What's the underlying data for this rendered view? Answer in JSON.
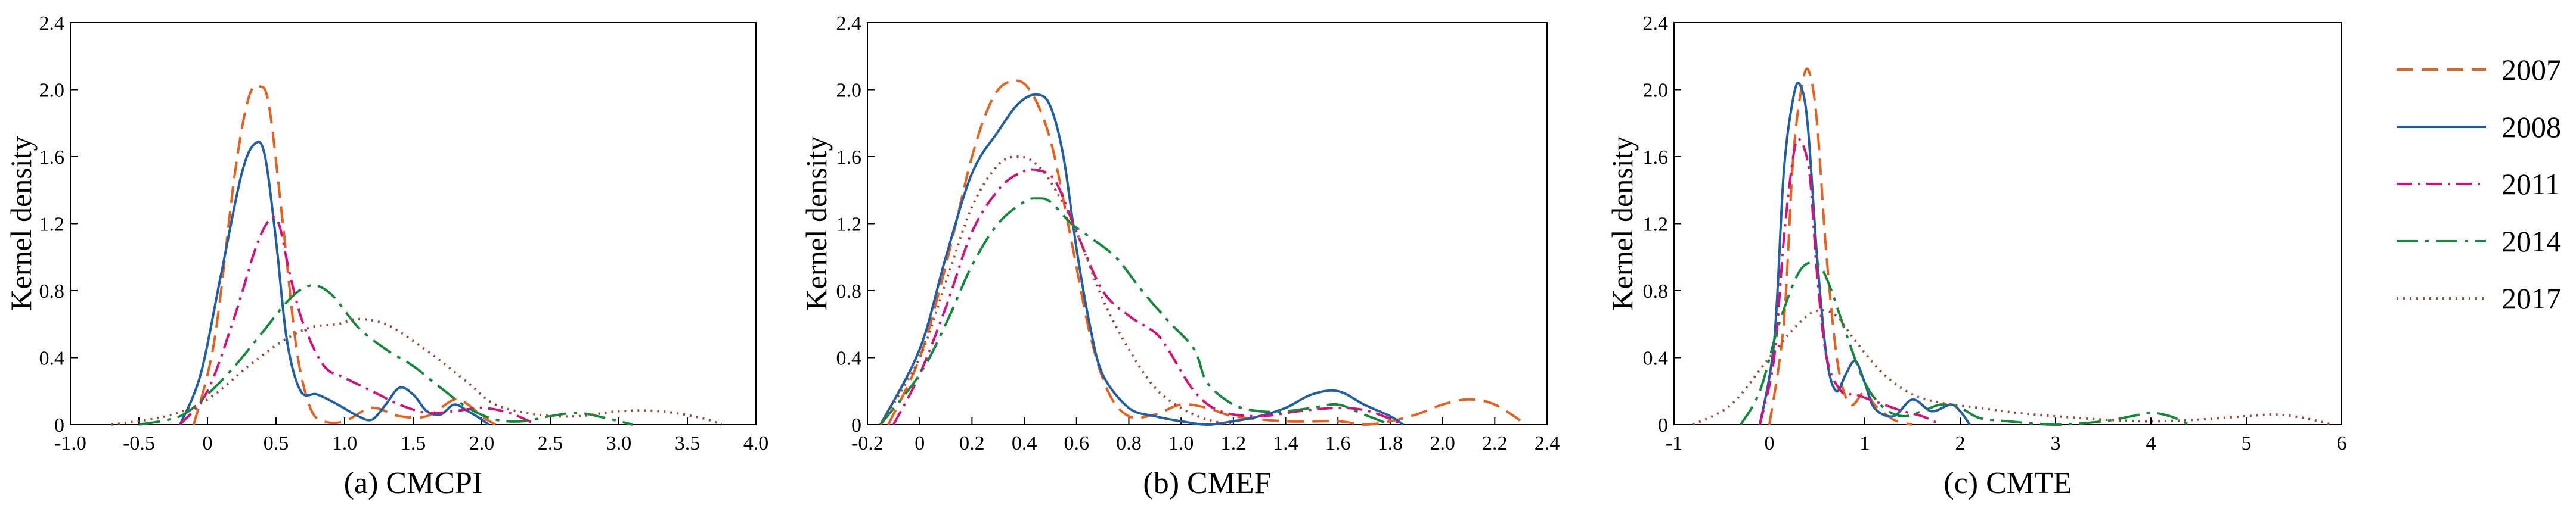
{
  "legend": {
    "entries": [
      {
        "label": "2007",
        "color": "#e8601c",
        "dash": "dashed"
      },
      {
        "label": "2008",
        "color": "#1f5fa8",
        "dash": "solid"
      },
      {
        "label": "2011",
        "color": "#d6107a",
        "dash": "dashdot"
      },
      {
        "label": "2014",
        "color": "#138a3a",
        "dash": "longdashdot"
      },
      {
        "label": "2017",
        "color": "#9c4a2e",
        "dash": "dotted"
      }
    ]
  },
  "chart_data": [
    {
      "type": "line",
      "caption": "(a) CMCPI",
      "ylabel": "Kernel density",
      "xlim": [
        -1.0,
        4.0
      ],
      "ylim": [
        0,
        2.4
      ],
      "xticks": [
        -1.0,
        -0.5,
        0,
        0.5,
        1.0,
        1.5,
        2.0,
        2.5,
        3.0,
        3.5,
        4.0
      ],
      "xtick_labels": [
        "-1.0",
        "-0.5",
        "0",
        "0.5",
        "1.0",
        "1.5",
        "2.0",
        "2.5",
        "3.0",
        "3.5",
        "4.0"
      ],
      "yticks": [
        0,
        0.4,
        0.8,
        1.2,
        1.6,
        2.0,
        2.4
      ],
      "ytick_labels": [
        "0",
        "0.4",
        "0.8",
        "1.2",
        "1.6",
        "2.0",
        "2.4"
      ],
      "series": [
        {
          "name": "2007",
          "x": [
            -0.1,
            0.05,
            0.2,
            0.3,
            0.38,
            0.45,
            0.55,
            0.65,
            0.75,
            0.85,
            1.0,
            1.2,
            1.4,
            1.6,
            1.8,
            1.9,
            2.0,
            2.1
          ],
          "y": [
            0,
            0.5,
            1.5,
            1.95,
            2.02,
            1.9,
            1.2,
            0.45,
            0.1,
            0.02,
            0.02,
            0.1,
            0.05,
            0.05,
            0.15,
            0.12,
            0.05,
            0
          ]
        },
        {
          "name": "2008",
          "x": [
            -0.2,
            -0.05,
            0.1,
            0.25,
            0.35,
            0.42,
            0.5,
            0.58,
            0.68,
            0.8,
            0.95,
            1.1,
            1.2,
            1.3,
            1.4,
            1.5,
            1.6,
            1.7,
            1.8,
            1.9,
            2.0,
            2.05
          ],
          "y": [
            0,
            0.3,
            0.9,
            1.5,
            1.68,
            1.6,
            1.1,
            0.5,
            0.2,
            0.18,
            0.12,
            0.05,
            0.03,
            0.12,
            0.22,
            0.18,
            0.08,
            0.06,
            0.12,
            0.08,
            0.03,
            0
          ]
        },
        {
          "name": "2011",
          "x": [
            -0.2,
            0.0,
            0.2,
            0.35,
            0.45,
            0.52,
            0.6,
            0.7,
            0.85,
            1.0,
            1.2,
            1.4,
            1.6,
            1.8,
            2.0,
            2.2,
            2.4
          ],
          "y": [
            0,
            0.2,
            0.65,
            1.05,
            1.22,
            1.2,
            0.9,
            0.6,
            0.35,
            0.28,
            0.2,
            0.12,
            0.07,
            0.08,
            0.1,
            0.07,
            0
          ]
        },
        {
          "name": "2014",
          "x": [
            -0.5,
            -0.2,
            0.0,
            0.2,
            0.4,
            0.6,
            0.75,
            0.9,
            1.1,
            1.3,
            1.5,
            1.7,
            1.9,
            2.1,
            2.3,
            2.5,
            2.7,
            2.9,
            3.1
          ],
          "y": [
            0,
            0.05,
            0.18,
            0.35,
            0.55,
            0.75,
            0.83,
            0.78,
            0.58,
            0.45,
            0.35,
            0.22,
            0.1,
            0.03,
            0.02,
            0.05,
            0.07,
            0.04,
            0
          ]
        },
        {
          "name": "2017",
          "x": [
            -0.7,
            -0.3,
            0.0,
            0.3,
            0.55,
            0.75,
            0.95,
            1.1,
            1.3,
            1.5,
            1.7,
            1.9,
            2.1,
            2.4,
            2.7,
            3.0,
            3.3,
            3.6,
            3.75
          ],
          "y": [
            0,
            0.05,
            0.15,
            0.35,
            0.5,
            0.58,
            0.6,
            0.63,
            0.6,
            0.5,
            0.38,
            0.25,
            0.12,
            0.06,
            0.05,
            0.08,
            0.08,
            0.04,
            0
          ]
        }
      ]
    },
    {
      "type": "line",
      "caption": "(b) CMEF",
      "ylabel": "Kernel density",
      "xlim": [
        -0.2,
        2.4
      ],
      "ylim": [
        0,
        2.4
      ],
      "xticks": [
        -0.2,
        0,
        0.2,
        0.4,
        0.6,
        0.8,
        1.0,
        1.2,
        1.4,
        1.6,
        1.8,
        2.0,
        2.2,
        2.4
      ],
      "xtick_labels": [
        "-0.2",
        "0",
        "0.2",
        "0.4",
        "0.6",
        "0.8",
        "1.0",
        "1.2",
        "1.4",
        "1.6",
        "1.8",
        "2.0",
        "2.2",
        "2.4"
      ],
      "yticks": [
        0,
        0.4,
        0.8,
        1.2,
        1.6,
        2.0,
        2.4
      ],
      "ytick_labels": [
        "0",
        "0.4",
        "0.8",
        "1.2",
        "1.6",
        "2.0",
        "2.4"
      ],
      "series": [
        {
          "name": "2007",
          "x": [
            -0.12,
            0.0,
            0.1,
            0.2,
            0.28,
            0.35,
            0.42,
            0.5,
            0.58,
            0.65,
            0.72,
            0.8,
            0.9,
            1.0,
            1.1,
            1.2,
            1.4,
            1.6,
            1.7,
            1.8,
            1.9,
            2.0,
            2.1,
            2.2,
            2.32
          ],
          "y": [
            0,
            0.4,
            0.95,
            1.6,
            1.95,
            2.05,
            2.0,
            1.7,
            1.1,
            0.55,
            0.2,
            0.05,
            0.06,
            0.12,
            0.1,
            0.05,
            0.02,
            0.02,
            0.0,
            0.02,
            0.06,
            0.12,
            0.15,
            0.12,
            0
          ]
        },
        {
          "name": "2008",
          "x": [
            -0.15,
            0.0,
            0.1,
            0.2,
            0.3,
            0.38,
            0.45,
            0.5,
            0.55,
            0.6,
            0.65,
            0.7,
            0.8,
            0.9,
            1.0,
            1.1,
            1.2,
            1.3,
            1.4,
            1.5,
            1.6,
            1.7,
            1.8,
            1.85
          ],
          "y": [
            0,
            0.45,
            1.0,
            1.5,
            1.75,
            1.92,
            1.97,
            1.9,
            1.6,
            1.05,
            0.6,
            0.3,
            0.1,
            0.05,
            0.02,
            0.0,
            0.02,
            0.05,
            0.1,
            0.18,
            0.2,
            0.12,
            0.05,
            0
          ]
        },
        {
          "name": "2011",
          "x": [
            -0.1,
            0.0,
            0.1,
            0.2,
            0.3,
            0.38,
            0.45,
            0.52,
            0.6,
            0.7,
            0.8,
            0.9,
            0.95,
            1.05,
            1.15,
            1.3,
            1.45,
            1.6,
            1.72,
            1.85
          ],
          "y": [
            0,
            0.3,
            0.7,
            1.15,
            1.4,
            1.5,
            1.52,
            1.45,
            1.15,
            0.8,
            0.65,
            0.55,
            0.45,
            0.2,
            0.08,
            0.05,
            0.08,
            0.1,
            0.08,
            0
          ]
        },
        {
          "name": "2014",
          "x": [
            -0.15,
            0.0,
            0.1,
            0.2,
            0.3,
            0.4,
            0.45,
            0.5,
            0.58,
            0.65,
            0.75,
            0.85,
            0.95,
            1.05,
            1.1,
            1.2,
            1.3,
            1.4,
            1.5,
            1.6,
            1.7,
            1.8
          ],
          "y": [
            0,
            0.3,
            0.6,
            0.95,
            1.2,
            1.33,
            1.35,
            1.33,
            1.2,
            1.12,
            1.0,
            0.8,
            0.62,
            0.45,
            0.25,
            0.12,
            0.08,
            0.08,
            0.1,
            0.12,
            0.06,
            0
          ]
        },
        {
          "name": "2017",
          "x": [
            -0.15,
            0.0,
            0.1,
            0.2,
            0.3,
            0.38,
            0.45,
            0.52,
            0.6,
            0.7,
            0.8,
            0.9,
            1.0,
            1.1,
            1.2
          ],
          "y": [
            0,
            0.4,
            0.85,
            1.3,
            1.55,
            1.6,
            1.55,
            1.4,
            1.15,
            0.75,
            0.45,
            0.22,
            0.1,
            0.03,
            0
          ]
        }
      ]
    },
    {
      "type": "line",
      "caption": "(c) CMTE",
      "ylabel": "Kernel density",
      "xlim": [
        -1,
        6
      ],
      "ylim": [
        0,
        2.4
      ],
      "xticks": [
        -1,
        0,
        1,
        2,
        3,
        4,
        5,
        6
      ],
      "xtick_labels": [
        "-1",
        "0",
        "1",
        "2",
        "3",
        "4",
        "5",
        "6"
      ],
      "yticks": [
        0,
        0.4,
        0.8,
        1.2,
        1.6,
        2.0,
        2.4
      ],
      "ytick_labels": [
        "0",
        "0.4",
        "0.8",
        "1.2",
        "1.6",
        "2.0",
        "2.4"
      ],
      "series": [
        {
          "name": "2007",
          "x": [
            0.0,
            0.15,
            0.25,
            0.35,
            0.42,
            0.5,
            0.6,
            0.72,
            0.85,
            1.0,
            1.1,
            1.3,
            1.5
          ],
          "y": [
            0,
            0.6,
            1.6,
            2.05,
            2.1,
            1.8,
            1.0,
            0.35,
            0.12,
            0.2,
            0.12,
            0.03,
            0
          ]
        },
        {
          "name": "2008",
          "x": [
            -0.1,
            0.05,
            0.15,
            0.25,
            0.32,
            0.4,
            0.5,
            0.6,
            0.7,
            0.8,
            0.9,
            1.0,
            1.1,
            1.3,
            1.5,
            1.7,
            1.9,
            2.0,
            2.1
          ],
          "y": [
            0,
            0.5,
            1.5,
            1.95,
            2.03,
            1.8,
            1.0,
            0.4,
            0.2,
            0.3,
            0.38,
            0.25,
            0.1,
            0.05,
            0.15,
            0.08,
            0.12,
            0.08,
            0
          ]
        },
        {
          "name": "2011",
          "x": [
            -0.1,
            0.05,
            0.15,
            0.25,
            0.32,
            0.42,
            0.5,
            0.6,
            0.75,
            0.9,
            1.05,
            1.2,
            1.4,
            1.6,
            1.8
          ],
          "y": [
            0,
            0.4,
            1.1,
            1.6,
            1.7,
            1.5,
            0.9,
            0.4,
            0.2,
            0.18,
            0.15,
            0.12,
            0.08,
            0.05,
            0
          ]
        },
        {
          "name": "2014",
          "x": [
            -0.3,
            -0.1,
            0.1,
            0.3,
            0.45,
            0.55,
            0.65,
            0.8,
            1.0,
            1.2,
            1.4,
            1.6,
            1.8,
            2.0,
            2.2,
            2.5,
            3.0,
            3.5,
            3.8,
            4.0,
            4.2,
            4.4
          ],
          "y": [
            0,
            0.2,
            0.6,
            0.9,
            0.97,
            0.93,
            0.8,
            0.55,
            0.25,
            0.1,
            0.05,
            0.08,
            0.12,
            0.1,
            0.04,
            0.02,
            0.0,
            0.02,
            0.05,
            0.07,
            0.05,
            0
          ]
        },
        {
          "name": "2017",
          "x": [
            -0.8,
            -0.4,
            0.0,
            0.3,
            0.5,
            0.7,
            0.9,
            1.2,
            1.5,
            1.8,
            2.2,
            2.6,
            3.0,
            3.5,
            4.0,
            4.5,
            5.0,
            5.3,
            5.6,
            5.9
          ],
          "y": [
            0,
            0.12,
            0.4,
            0.6,
            0.68,
            0.65,
            0.5,
            0.3,
            0.18,
            0.13,
            0.1,
            0.07,
            0.05,
            0.03,
            0.02,
            0.03,
            0.05,
            0.06,
            0.04,
            0
          ]
        }
      ]
    }
  ]
}
